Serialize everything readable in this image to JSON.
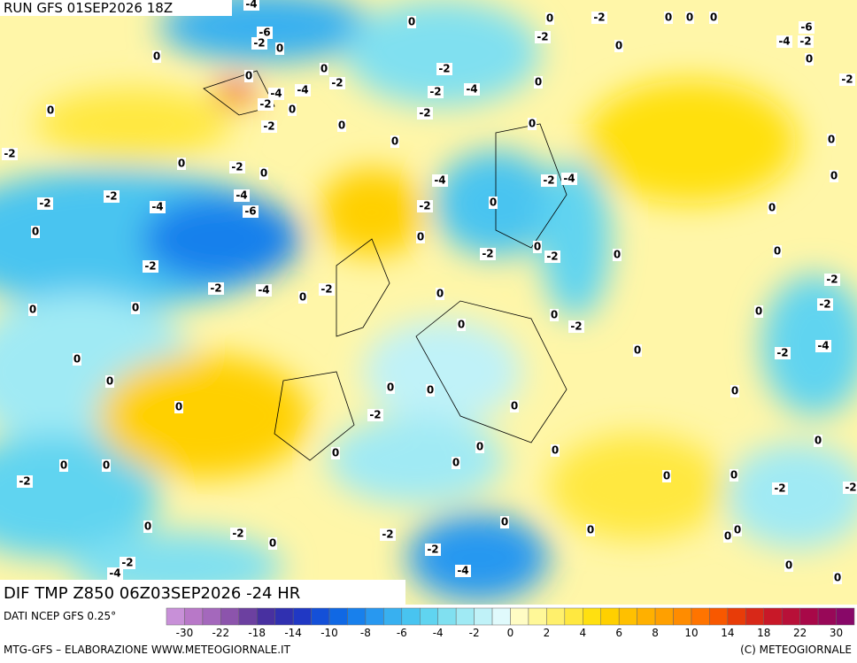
{
  "header": {
    "run": "RUN GFS 01SEP2026 18Z",
    "field": "DIF TMP Z850 06Z03SEP2026 -24 HR"
  },
  "footer": {
    "source": "DATI NCEP GFS 0.25°",
    "credit": "MTG-GFS – ELABORAZIONE WWW.METEOGIORNALE.IT",
    "copyright": "(C) METEOGIORNALE"
  },
  "legend": {
    "colors": [
      "#c890d8",
      "#b878c8",
      "#a468bc",
      "#8c54ac",
      "#6c40a0",
      "#4830a0",
      "#3030b0",
      "#2038c4",
      "#1450d8",
      "#1068e4",
      "#1880ec",
      "#2898f0",
      "#38b0f0",
      "#48c4f0",
      "#60d4f0",
      "#80e0f0",
      "#a0eaf4",
      "#c0f2f8",
      "#e0fafc",
      "#fffcc4",
      "#fff898",
      "#fff06c",
      "#ffe840",
      "#ffe010",
      "#ffd000",
      "#ffc000",
      "#ffb000",
      "#ffa000",
      "#ff8c00",
      "#ff7400",
      "#f85800",
      "#e83c08",
      "#d82818",
      "#c81828",
      "#b81038",
      "#a80848",
      "#980858",
      "#880868"
    ],
    "ticks": [
      -30,
      -22,
      -18,
      -14,
      -10,
      -8,
      -6,
      -4,
      -2,
      0,
      2,
      4,
      6,
      8,
      10,
      14,
      18,
      22,
      30
    ]
  },
  "contour_labels": [
    -4,
    -6,
    -2,
    0,
    0,
    0,
    0,
    -4,
    -4,
    -2,
    -2,
    0,
    0,
    -2,
    0,
    0,
    -2,
    0,
    -2,
    0,
    -2,
    -4,
    -2,
    -4,
    -6,
    0,
    -2,
    -2,
    -4,
    -2,
    0,
    0,
    0,
    0,
    0,
    0,
    0,
    0,
    -2,
    0,
    -2,
    0,
    -2,
    -4,
    0,
    -2,
    0,
    0,
    -2,
    -2,
    -4,
    0,
    0,
    0,
    0,
    0,
    0,
    0,
    -2,
    0,
    0,
    0,
    -2,
    0,
    -2,
    0,
    -4,
    -2,
    0,
    -4,
    -2,
    0,
    0,
    0,
    -2,
    -2,
    0,
    -2,
    -2,
    -4,
    -2,
    0,
    0,
    0,
    0,
    0,
    -6,
    -4,
    -2,
    0,
    -2,
    0,
    0,
    0,
    0,
    -2,
    -2,
    0,
    -4,
    -2,
    0,
    0,
    0,
    0,
    -2,
    -2,
    0,
    0,
    0,
    0
  ]
}
